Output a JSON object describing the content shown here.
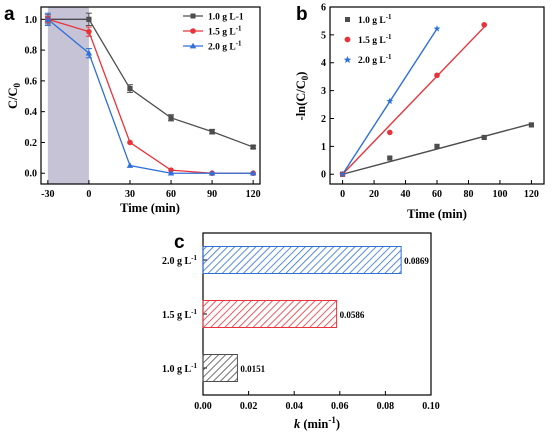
{
  "chart_data": [
    {
      "panel": "a",
      "type": "line",
      "xlabel": "Time (min)",
      "ylabel": "C/C",
      "ylabel_sub": "0",
      "x_ticks": [
        "-30",
        "0",
        "30",
        "60",
        "90",
        "120"
      ],
      "y_ticks": [
        "0.0",
        "0.2",
        "0.4",
        "0.6",
        "0.8",
        "1.0"
      ],
      "xlim": [
        -35,
        125
      ],
      "ylim": [
        -0.07,
        1.08
      ],
      "shaded_region": [
        -30,
        0
      ],
      "legend_position": "top-right",
      "series": [
        {
          "name": "1.0 g L-1",
          "color": "#4d4d4d",
          "marker": "square",
          "x": [
            -30,
            0,
            30,
            60,
            90,
            120
          ],
          "y": [
            1.0,
            1.0,
            0.55,
            0.36,
            0.27,
            0.17
          ],
          "err": [
            0.03,
            0.04,
            0.025,
            0.02,
            0.015,
            0.01
          ]
        },
        {
          "name": "1.5 g L",
          "name_sup": "-1",
          "color": "#e8333a",
          "marker": "circle",
          "x": [
            -30,
            0,
            30,
            60,
            90,
            120
          ],
          "y": [
            1.0,
            0.92,
            0.2,
            0.02,
            0.0,
            0.0
          ],
          "err": [
            0.02,
            0.03,
            0.0,
            0.0,
            0.0,
            0.0
          ]
        },
        {
          "name": "2.0 g L",
          "name_sup": "-1",
          "color": "#2e6fd9",
          "marker": "triangle",
          "x": [
            -30,
            0,
            30,
            60,
            90,
            120
          ],
          "y": [
            1.0,
            0.78,
            0.05,
            0.0,
            0.0,
            0.0
          ],
          "err": [
            0.04,
            0.03,
            0.0,
            0.0,
            0.0,
            0.0
          ]
        }
      ]
    },
    {
      "panel": "b",
      "type": "scatter",
      "xlabel": "Time (min)",
      "ylabel": "-ln(C/C",
      "ylabel_sub": "0",
      "ylabel_end": ")",
      "x_ticks": [
        "0",
        "20",
        "40",
        "60",
        "80",
        "100",
        "120"
      ],
      "y_ticks": [
        "0",
        "1",
        "2",
        "3",
        "4",
        "5",
        "6"
      ],
      "xlim": [
        -8,
        128
      ],
      "ylim": [
        -0.35,
        6.0
      ],
      "legend_position": "top-left",
      "series": [
        {
          "name": "1.0 g L",
          "name_sup": "-1",
          "color": "#4d4d4d",
          "marker": "square",
          "x": [
            0,
            30,
            60,
            90,
            120
          ],
          "y": [
            0.0,
            0.58,
            1.0,
            1.32,
            1.77
          ],
          "fit": [
            0,
            0.0,
            120,
            1.81
          ]
        },
        {
          "name": "1.5 g L",
          "name_sup": "-1",
          "color": "#e8333a",
          "marker": "circle",
          "x": [
            0,
            30,
            60,
            90
          ],
          "y": [
            0.0,
            1.5,
            3.55,
            5.36
          ],
          "fit": [
            0,
            0.0,
            90,
            5.28
          ]
        },
        {
          "name": "2.0 g L",
          "name_sup": "-1",
          "color": "#2e6fd9",
          "marker": "star",
          "x": [
            0,
            30,
            60
          ],
          "y": [
            0.0,
            2.62,
            5.22
          ],
          "fit": [
            0,
            0.0,
            60,
            5.22
          ]
        }
      ]
    },
    {
      "panel": "c",
      "type": "bar",
      "orientation": "horizontal",
      "xlabel": "k",
      "xlabel_unit": " (min",
      "xlabel_sup": "-1",
      "xlabel_end": ")",
      "x_ticks": [
        "0.00",
        "0.02",
        "0.04",
        "0.06",
        "0.08",
        "0.10"
      ],
      "xlim": [
        0,
        0.1
      ],
      "categories": [
        {
          "label": "2.0 g L",
          "sup": "-1"
        },
        {
          "label": "1.5 g L",
          "sup": "-1"
        },
        {
          "label": "1.0 g L",
          "sup": "-1"
        }
      ],
      "values": [
        0.0869,
        0.0586,
        0.0151
      ],
      "value_labels": [
        "0.0869",
        "0.0586",
        "0.0151"
      ],
      "colors": [
        "#2e6fd9",
        "#e8333a",
        "#4d4d4d"
      ],
      "pattern": "diagonal-hatch"
    }
  ]
}
